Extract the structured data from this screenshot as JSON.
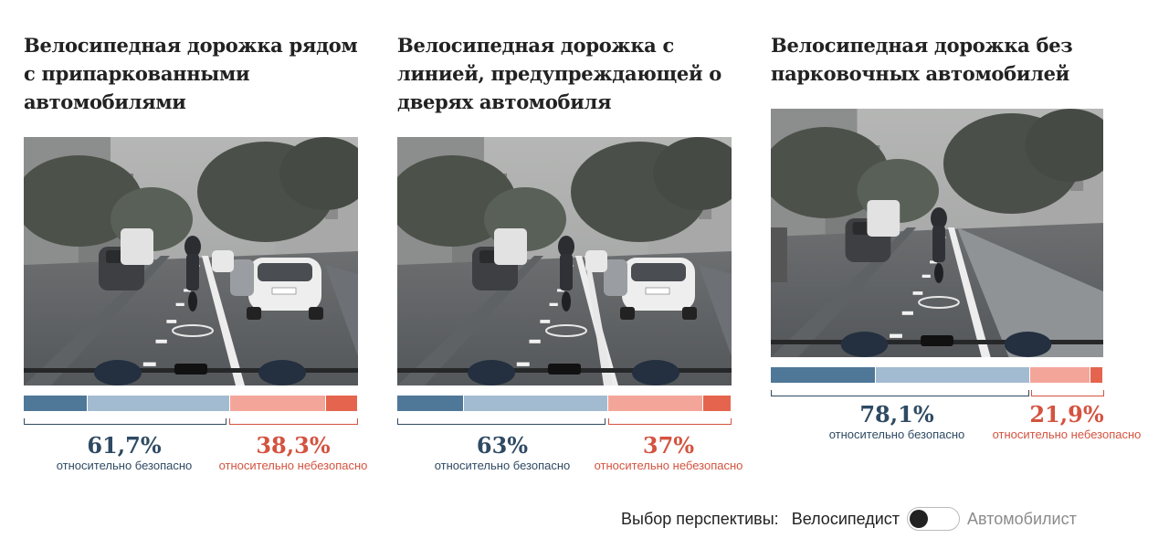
{
  "colors": {
    "safe_dark": "#4f7898",
    "safe_light": "#a3bbd1",
    "unsafe_light": "#f4a59a",
    "unsafe_dark": "#e5644e",
    "safe_text": "#2f4a63",
    "unsafe_text": "#d4533f"
  },
  "panels": [
    {
      "title": "Велосипедная дорожка рядом с припаркованными автомобилями",
      "safe_pct": "61,7%",
      "unsafe_pct": "38,3%",
      "safe_label": "относительно безопасно",
      "unsafe_label": "относительно небезопасно",
      "segments": [
        19.2,
        42.5,
        28.8,
        9.5
      ],
      "image": "cyclist-view-street-parked-cars"
    },
    {
      "title": "Велосипедная дорожка с линией, предупреждающей о дверях автомобиля",
      "safe_pct": "63%",
      "unsafe_pct": "37%",
      "safe_label": "относительно безопасно",
      "unsafe_label": "относительно небезопасно",
      "segments": [
        20.0,
        43.0,
        28.5,
        8.5
      ],
      "image": "cyclist-view-street-door-zone-line"
    },
    {
      "title": "Велосипедная дорожка без парковочных автомобилей",
      "safe_pct": "78,1%",
      "unsafe_pct": "21,9%",
      "safe_label": "относительно безопасно",
      "unsafe_label": "относительно небезопасно",
      "segments": [
        31.5,
        46.6,
        18.0,
        3.9
      ],
      "image": "cyclist-view-street-no-parking"
    }
  ],
  "perspective": {
    "label": "Выбор перспективы:",
    "option_left": "Велосипедист",
    "option_right": "Автомобилист",
    "selected": "Велосипедист"
  }
}
